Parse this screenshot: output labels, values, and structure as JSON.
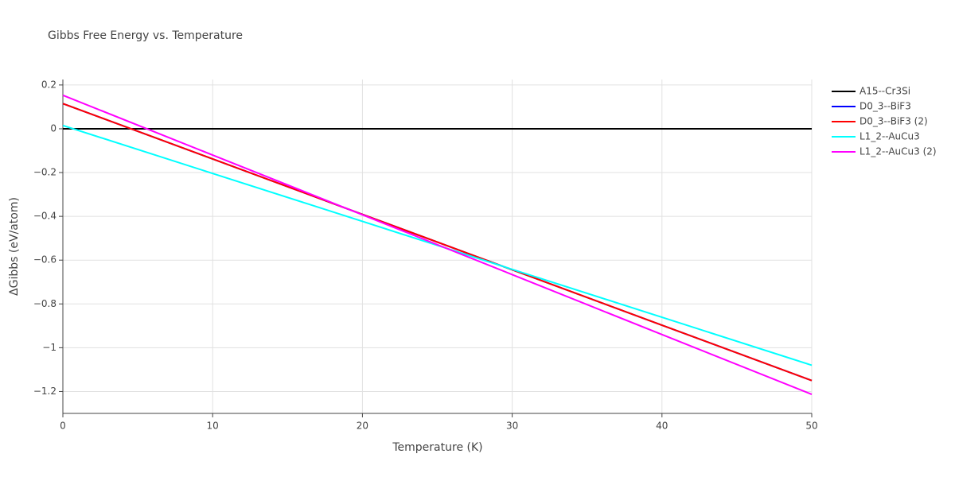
{
  "chart_data": {
    "type": "line",
    "title": "Gibbs Free Energy vs. Temperature",
    "x_label": "Temperature (K)",
    "y_label": "ΔGibbs (eV/atom)",
    "x": [
      0,
      10,
      20,
      30,
      40,
      50
    ],
    "series": [
      {
        "name": "A15--Cr3Si",
        "color": "#000000",
        "values": [
          0,
          0,
          0,
          0,
          0,
          0
        ]
      },
      {
        "name": "D0_3--BiF3",
        "color": "#0000ff",
        "values": [
          0.115,
          -0.138,
          -0.391,
          -0.644,
          -0.897,
          -1.15
        ]
      },
      {
        "name": "D0_3--BiF3 (2)",
        "color": "#ff0000",
        "values": [
          0.115,
          -0.138,
          -0.391,
          -0.644,
          -0.897,
          -1.15
        ]
      },
      {
        "name": "L1_2--AuCu3",
        "color": "#00ffff",
        "values": [
          0.015,
          -0.204,
          -0.423,
          -0.642,
          -0.861,
          -1.08
        ]
      },
      {
        "name": "L1_2--AuCu3 (2)",
        "color": "#ff00ff",
        "values": [
          0.153,
          -0.12,
          -0.393,
          -0.666,
          -0.94,
          -1.213
        ]
      }
    ],
    "xlim": [
      0,
      50
    ],
    "xticks": [
      0,
      10,
      20,
      30,
      40,
      50
    ],
    "ylim": [
      -1.3,
      0.225
    ],
    "yticks": [
      0.2,
      0,
      {
        "value": -0.2,
        "label": "−0.2"
      },
      {
        "value": -0.4,
        "label": "−0.4"
      },
      {
        "value": -0.6,
        "label": "−0.6"
      },
      {
        "value": -0.8,
        "label": "−0.8"
      },
      {
        "value": -1,
        "label": "−1"
      },
      {
        "value": -1.2,
        "label": "−1.2"
      }
    ],
    "grid": true,
    "legend": "right"
  }
}
